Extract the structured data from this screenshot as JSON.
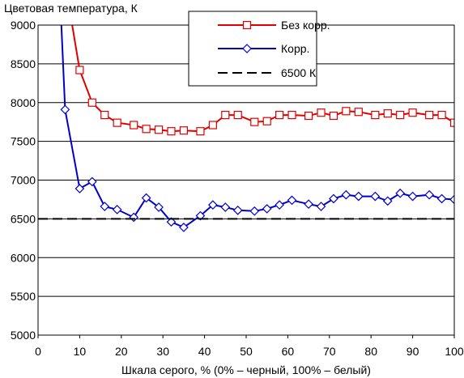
{
  "chart_data": {
    "type": "line",
    "title": "",
    "ylabel": "Цветовая температура, К",
    "xlabel": "Шкала серого, % (0% – черный, 100% – белый)",
    "xlim": [
      0,
      100
    ],
    "ylim": [
      5000,
      9000
    ],
    "xticks": [
      "0",
      "10",
      "20",
      "30",
      "40",
      "50",
      "60",
      "70",
      "80",
      "90",
      "100"
    ],
    "yticks": [
      "5000",
      "5500",
      "6000",
      "6500",
      "7000",
      "7500",
      "8000",
      "8500",
      "9000"
    ],
    "grid": "horizontal",
    "legend_position": "top-center",
    "series": [
      {
        "name": "Без корр.",
        "color": "#e00000",
        "marker": "square",
        "x": [
          10,
          13,
          16,
          19,
          23,
          26,
          29,
          32,
          35,
          39,
          42,
          45,
          48,
          52,
          55,
          58,
          61,
          65,
          68,
          71,
          74,
          77,
          81,
          84,
          87,
          90,
          94,
          97,
          100
        ],
        "y": [
          8420,
          8000,
          7840,
          7740,
          7710,
          7660,
          7650,
          7630,
          7640,
          7630,
          7710,
          7840,
          7840,
          7750,
          7760,
          7840,
          7840,
          7830,
          7870,
          7830,
          7890,
          7880,
          7840,
          7860,
          7840,
          7870,
          7840,
          7840,
          7740
        ]
      },
      {
        "name": "Корр.",
        "color": "#0000cc",
        "marker": "diamond",
        "x": [
          6.5,
          10,
          13,
          16,
          19,
          23,
          26,
          29,
          32,
          35,
          39,
          42,
          45,
          48,
          52,
          55,
          58,
          61,
          65,
          68,
          71,
          74,
          77,
          81,
          84,
          87,
          90,
          94,
          97,
          100
        ],
        "y": [
          7910,
          6890,
          6980,
          6660,
          6620,
          6520,
          6770,
          6650,
          6460,
          6390,
          6540,
          6680,
          6650,
          6610,
          6600,
          6630,
          6680,
          6740,
          6690,
          6660,
          6760,
          6810,
          6790,
          6790,
          6730,
          6830,
          6790,
          6810,
          6760,
          6750
        ]
      },
      {
        "name": "6500 К",
        "color": "#000000",
        "dash": true,
        "x": [
          0,
          100
        ],
        "y": [
          6500,
          6500
        ]
      }
    ],
    "offscale_lines": [
      {
        "series": "Без корр.",
        "from": [
          8.2,
          9000
        ],
        "to": [
          10,
          8420
        ]
      },
      {
        "series": "Корр.",
        "from": [
          5.6,
          9000
        ],
        "to": [
          6.5,
          7910
        ]
      }
    ]
  }
}
